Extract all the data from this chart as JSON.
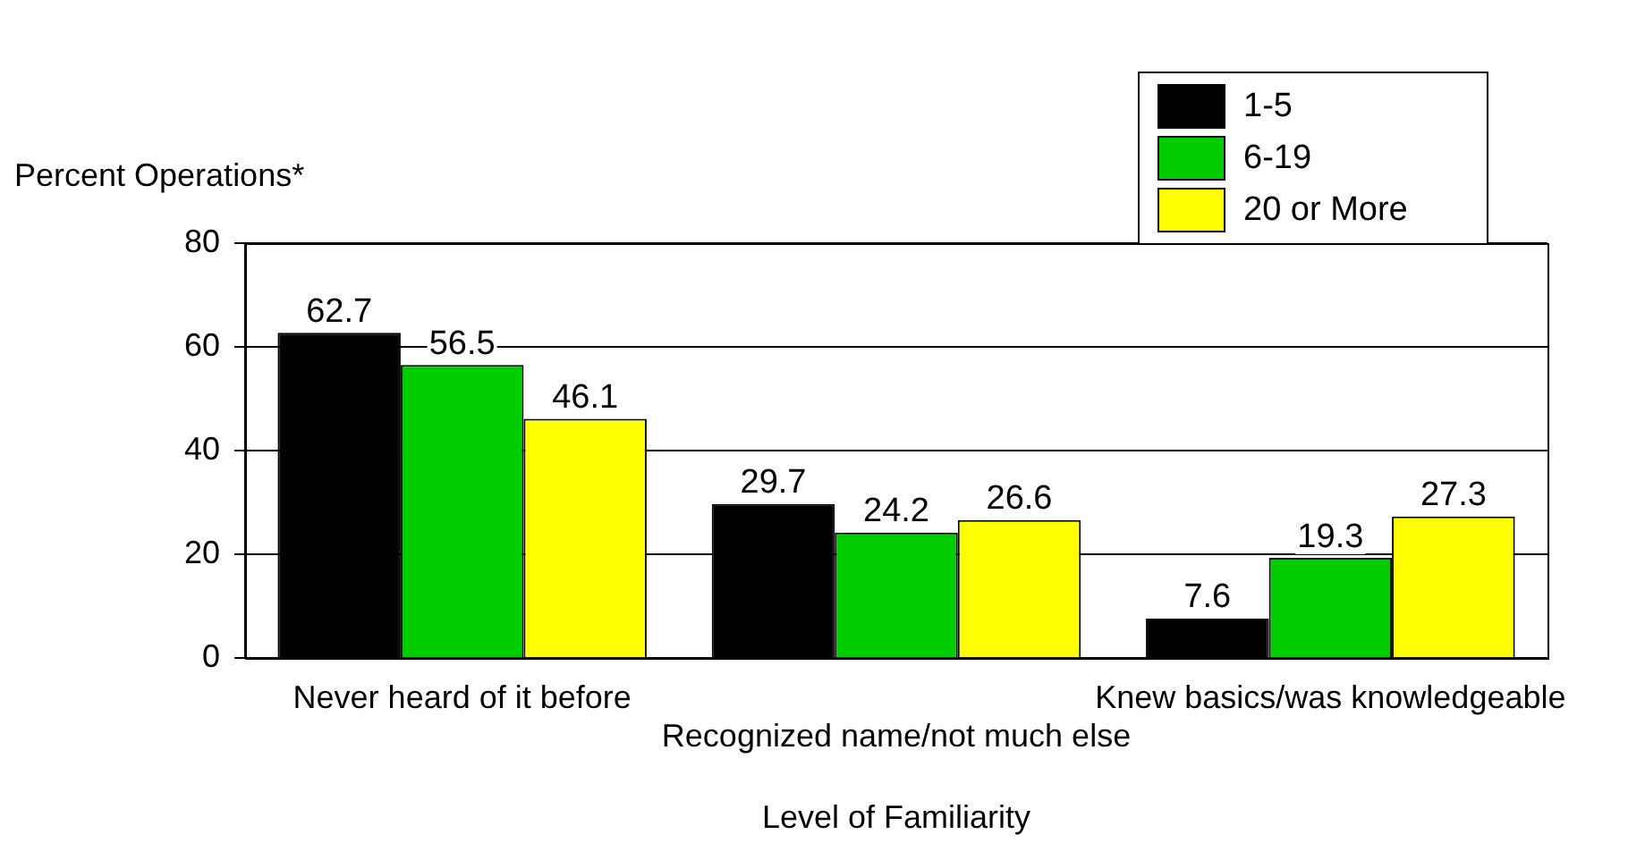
{
  "chart_data": {
    "type": "bar",
    "ylabel": "Percent Operations*",
    "xlabel": "Level of Familiarity",
    "categories": [
      "Never heard of it before",
      "Recognized name/not much else",
      "Knew basics/was knowledgeable"
    ],
    "series": [
      {
        "name": "1-5",
        "color": "#000000",
        "values": [
          62.7,
          29.7,
          7.6
        ]
      },
      {
        "name": "6-19",
        "color": "#00cc00",
        "values": [
          56.5,
          24.2,
          19.3
        ]
      },
      {
        "name": "20 or More",
        "color": "#ffff00",
        "values": [
          46.1,
          26.6,
          27.3
        ]
      }
    ],
    "ylim": [
      0,
      80
    ],
    "yticks": [
      0,
      20,
      40,
      60,
      80
    ],
    "grid": "y",
    "legend": "top right",
    "data_labels": true
  }
}
